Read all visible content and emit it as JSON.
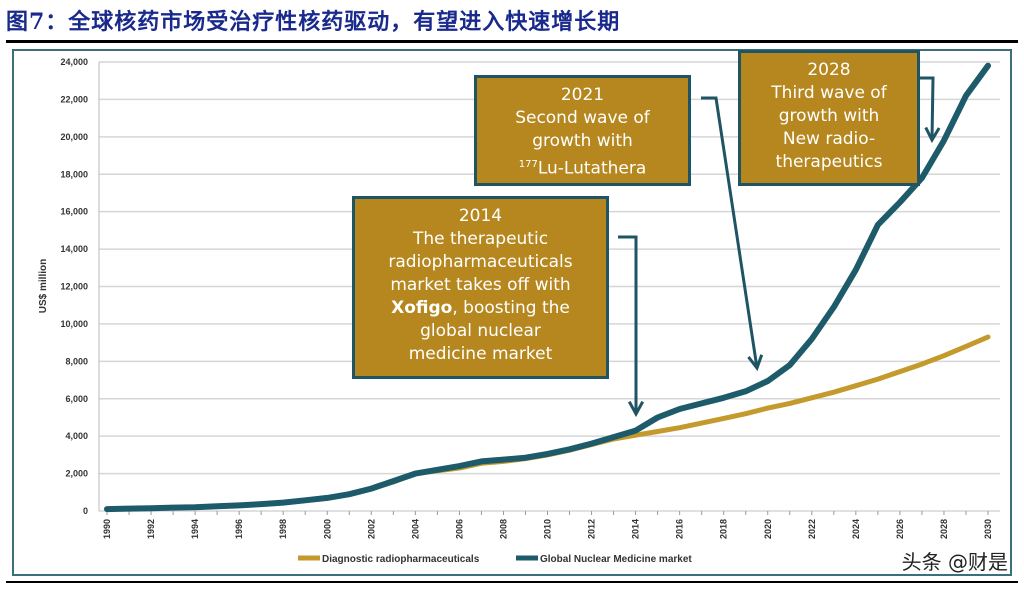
{
  "title": "图7：全球核药市场受治疗性核药驱动，有望进入快速增长期",
  "watermark": "头条 @财是",
  "chart_data": {
    "type": "line",
    "title": "",
    "xlabel": "",
    "ylabel": "US$ million",
    "ylim": [
      0,
      24000
    ],
    "yticks": [
      0,
      2000,
      4000,
      6000,
      8000,
      10000,
      12000,
      14000,
      16000,
      18000,
      20000,
      22000,
      24000
    ],
    "ytick_labels": [
      "0",
      "2,000",
      "4,000",
      "6,000",
      "8,000",
      "10,000",
      "12,000",
      "14,000",
      "16,000",
      "18,000",
      "20,000",
      "22,000",
      "24,000"
    ],
    "xlim": [
      1990,
      2030
    ],
    "xtick_labels": [
      "1990",
      "1992",
      "1994",
      "1996",
      "1998",
      "2000",
      "2002",
      "2004",
      "2006",
      "2008",
      "2010",
      "2012",
      "2014",
      "2016",
      "2018",
      "2020",
      "2022",
      "2024",
      "2026",
      "2028",
      "2030"
    ],
    "grid": true,
    "legend_position": "bottom",
    "x": [
      1990,
      1991,
      1992,
      1993,
      1994,
      1995,
      1996,
      1997,
      1998,
      1999,
      2000,
      2001,
      2002,
      2003,
      2004,
      2005,
      2006,
      2007,
      2008,
      2009,
      2010,
      2011,
      2012,
      2013,
      2014,
      2015,
      2016,
      2017,
      2018,
      2019,
      2020,
      2021,
      2022,
      2023,
      2024,
      2025,
      2026,
      2027,
      2028,
      2029,
      2030
    ],
    "series": [
      {
        "name": "Diagnostic radiopharmaceuticals",
        "color": "#c49a2c",
        "values": [
          100,
          130,
          150,
          180,
          200,
          250,
          300,
          370,
          450,
          570,
          700,
          900,
          1200,
          1550,
          2000,
          2150,
          2300,
          2550,
          2650,
          2800,
          3000,
          3250,
          3550,
          3850,
          4050,
          4250,
          4450,
          4700,
          4950,
          5200,
          5500,
          5750,
          6050,
          6350,
          6700,
          7050,
          7450,
          7850,
          8300,
          8800,
          9300
        ]
      },
      {
        "name": "Global Nuclear Medicine market",
        "color": "#1d5b6b",
        "values": [
          100,
          130,
          150,
          180,
          200,
          250,
          300,
          370,
          450,
          570,
          700,
          900,
          1200,
          1600,
          2000,
          2200,
          2400,
          2650,
          2750,
          2850,
          3050,
          3300,
          3600,
          3950,
          4300,
          5000,
          5450,
          5750,
          6050,
          6400,
          6950,
          7800,
          9200,
          10900,
          12900,
          15300,
          16500,
          17800,
          19800,
          22200,
          23800
        ]
      }
    ],
    "annotations": [
      {
        "year": "2014",
        "text": [
          "The therapeutic",
          "radiopharmaceuticals",
          "market takes off with"
        ],
        "bold": "Xofigo",
        "text_after": [
          ", boosting the",
          "global nuclear",
          "medicine market"
        ]
      },
      {
        "year": "2021",
        "text": [
          "Second wave of",
          "growth with"
        ],
        "sup": "177",
        "text_after": "Lu-Lutathera"
      },
      {
        "year": "2028",
        "text": [
          "Third wave of",
          "growth with",
          "New radio-",
          "therapeutics"
        ]
      }
    ]
  }
}
